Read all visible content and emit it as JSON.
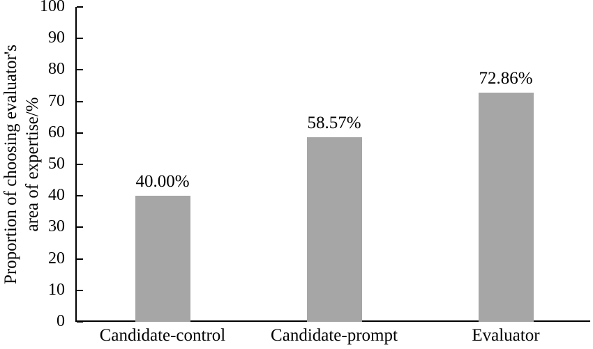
{
  "chart_data": {
    "type": "bar",
    "categories": [
      "Candidate-control",
      "Candidate-prompt",
      "Evaluator"
    ],
    "values": [
      40.0,
      58.57,
      72.86
    ],
    "value_labels": [
      "40.00%",
      "58.57%",
      "72.86%"
    ],
    "title": "",
    "xlabel": "",
    "ylabel_line1": "Proportion of choosing evaluator's",
    "ylabel_line2": "area of expertise/%",
    "ylim": [
      0,
      100
    ],
    "yticks": [
      0,
      10,
      20,
      30,
      40,
      50,
      60,
      70,
      80,
      90,
      100
    ],
    "grid": false,
    "legend": false,
    "bar_color": "#a6a6a6",
    "axis_color": "#000000",
    "text_color": "#000000"
  }
}
